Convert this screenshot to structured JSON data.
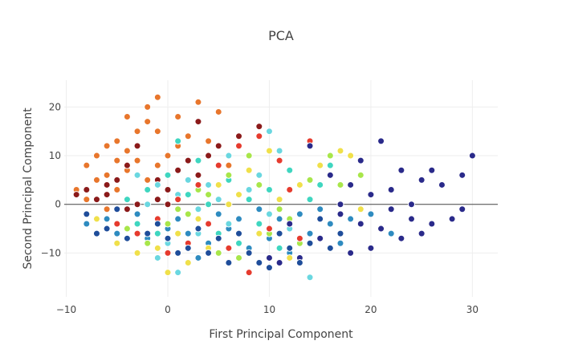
{
  "chart_data": {
    "type": "scatter",
    "title": "PCA",
    "xlabel": "First Principal Component",
    "ylabel": "Second Principal Component",
    "xlim": [
      -10.2,
      32.5
    ],
    "ylim": [
      -19,
      25.5
    ],
    "xticks": [
      -10,
      0,
      10,
      20,
      30
    ],
    "xtick_labels": [
      "−10",
      "0",
      "10",
      "20",
      "30"
    ],
    "yticks": [
      -10,
      0,
      10,
      20
    ],
    "ytick_labels": [
      "−10",
      "0",
      "10",
      "20"
    ],
    "grid": true,
    "legend": "none",
    "point_count": 1797,
    "palette": [
      "#e8762c",
      "#8b1a1a",
      "#2e8bc0",
      "#6ad7e0",
      "#3fd6c0",
      "#a8e64a",
      "#f0e04a",
      "#e63b2e",
      "#2a2a8a",
      "#1f4d9a"
    ],
    "series": [
      {
        "color": "#e8762c",
        "points": [
          [
            -5,
            13
          ],
          [
            -4,
            18
          ],
          [
            -1,
            22
          ],
          [
            -2,
            17
          ],
          [
            -6,
            12
          ],
          [
            -3,
            15
          ],
          [
            -7,
            10
          ],
          [
            -4,
            11
          ],
          [
            -8,
            8
          ],
          [
            -2,
            20
          ],
          [
            3,
            21
          ],
          [
            -1,
            15
          ],
          [
            1,
            12
          ],
          [
            -5,
            9
          ],
          [
            -6,
            6
          ],
          [
            -3,
            9
          ],
          [
            0,
            10
          ],
          [
            2,
            14
          ],
          [
            5,
            19
          ],
          [
            -4,
            7
          ],
          [
            -7,
            5
          ],
          [
            -9,
            3
          ],
          [
            -2,
            5
          ],
          [
            6,
            8
          ],
          [
            4,
            13
          ],
          [
            1,
            18
          ],
          [
            -1,
            8
          ],
          [
            -8,
            1
          ],
          [
            -5,
            3
          ],
          [
            -6,
            -1
          ]
        ]
      },
      {
        "color": "#8b1a1a",
        "points": [
          [
            -8,
            3
          ],
          [
            -6,
            4
          ],
          [
            -4,
            8
          ],
          [
            -3,
            12
          ],
          [
            -1,
            5
          ],
          [
            0,
            3
          ],
          [
            1,
            7
          ],
          [
            2,
            9
          ],
          [
            3,
            17
          ],
          [
            2,
            2
          ],
          [
            -2,
            3
          ],
          [
            -5,
            5
          ],
          [
            -7,
            1
          ],
          [
            -4,
            -1
          ],
          [
            -1,
            1
          ],
          [
            4,
            10
          ],
          [
            5,
            12
          ],
          [
            3,
            6
          ],
          [
            -6,
            2
          ],
          [
            0,
            0
          ],
          [
            7,
            14
          ],
          [
            9,
            16
          ],
          [
            -9,
            2
          ],
          [
            -3,
            0
          ]
        ]
      },
      {
        "color": "#2e8bc0",
        "points": [
          [
            -8,
            -4
          ],
          [
            -6,
            -3
          ],
          [
            -3,
            -2
          ],
          [
            0,
            -5
          ],
          [
            2,
            -6
          ],
          [
            4,
            -8
          ],
          [
            6,
            -5
          ],
          [
            8,
            -9
          ],
          [
            10,
            -7
          ],
          [
            12,
            -10
          ],
          [
            14,
            -6
          ],
          [
            16,
            -4
          ],
          [
            18,
            -3
          ],
          [
            11,
            -3
          ],
          [
            13,
            -2
          ],
          [
            15,
            -1
          ],
          [
            5,
            -2
          ],
          [
            7,
            -3
          ],
          [
            9,
            -1
          ],
          [
            20,
            -2
          ],
          [
            22,
            -6
          ],
          [
            3,
            -11
          ],
          [
            1,
            -3
          ],
          [
            -2,
            -7
          ],
          [
            -5,
            -6
          ],
          [
            17,
            -8
          ]
        ]
      },
      {
        "color": "#6ad7e0",
        "points": [
          [
            -3,
            6
          ],
          [
            -1,
            4
          ],
          [
            1,
            2
          ],
          [
            2,
            5
          ],
          [
            3,
            -1
          ],
          [
            5,
            1
          ],
          [
            6,
            -4
          ],
          [
            0,
            -8
          ],
          [
            -1,
            -11
          ],
          [
            1,
            -14
          ],
          [
            3,
            -6
          ],
          [
            8,
            3
          ],
          [
            10,
            -2
          ],
          [
            12,
            -5
          ],
          [
            14,
            -15
          ],
          [
            4,
            4
          ],
          [
            -2,
            0
          ],
          [
            6,
            10
          ],
          [
            10,
            15
          ],
          [
            9,
            6
          ],
          [
            11,
            11
          ]
        ]
      },
      {
        "color": "#3fd6c0",
        "points": [
          [
            -4,
            1
          ],
          [
            -2,
            3
          ],
          [
            0,
            6
          ],
          [
            2,
            2
          ],
          [
            4,
            0
          ],
          [
            6,
            5
          ],
          [
            8,
            1
          ],
          [
            10,
            3
          ],
          [
            12,
            7
          ],
          [
            14,
            1
          ],
          [
            5,
            -6
          ],
          [
            7,
            -8
          ],
          [
            3,
            9
          ],
          [
            1,
            13
          ],
          [
            -1,
            -6
          ],
          [
            -3,
            -4
          ],
          [
            9,
            -4
          ],
          [
            11,
            -9
          ],
          [
            15,
            4
          ],
          [
            16,
            8
          ]
        ]
      },
      {
        "color": "#a8e64a",
        "points": [
          [
            -2,
            -8
          ],
          [
            0,
            -4
          ],
          [
            2,
            -2
          ],
          [
            4,
            2
          ],
          [
            6,
            6
          ],
          [
            8,
            10
          ],
          [
            10,
            -6
          ],
          [
            12,
            -3
          ],
          [
            14,
            5
          ],
          [
            16,
            10
          ],
          [
            5,
            -10
          ],
          [
            7,
            -11
          ],
          [
            3,
            3
          ],
          [
            1,
            -1
          ],
          [
            9,
            4
          ],
          [
            11,
            -1
          ],
          [
            13,
            -8
          ],
          [
            -4,
            -5
          ],
          [
            17,
            4
          ],
          [
            19,
            6
          ]
        ]
      },
      {
        "color": "#f0e04a",
        "points": [
          [
            -5,
            -8
          ],
          [
            -3,
            -10
          ],
          [
            -1,
            -9
          ],
          [
            1,
            -6
          ],
          [
            3,
            -3
          ],
          [
            5,
            4
          ],
          [
            7,
            2
          ],
          [
            9,
            -6
          ],
          [
            11,
            1
          ],
          [
            13,
            4
          ],
          [
            15,
            8
          ],
          [
            17,
            11
          ],
          [
            19,
            -1
          ],
          [
            2,
            -12
          ],
          [
            0,
            -14
          ],
          [
            4,
            -9
          ],
          [
            6,
            0
          ],
          [
            8,
            7
          ],
          [
            10,
            11
          ],
          [
            12,
            -11
          ],
          [
            18,
            10
          ],
          [
            -7,
            -3
          ]
        ]
      },
      {
        "color": "#e63b2e",
        "points": [
          [
            -3,
            -6
          ],
          [
            -1,
            -3
          ],
          [
            1,
            1
          ],
          [
            3,
            4
          ],
          [
            5,
            8
          ],
          [
            7,
            12
          ],
          [
            9,
            14
          ],
          [
            11,
            9
          ],
          [
            6,
            -9
          ],
          [
            8,
            -14
          ],
          [
            2,
            -8
          ],
          [
            4,
            -4
          ],
          [
            0,
            -10
          ],
          [
            10,
            -5
          ],
          [
            12,
            3
          ],
          [
            14,
            13
          ],
          [
            -5,
            -4
          ],
          [
            13,
            -7
          ]
        ]
      },
      {
        "color": "#2a2a8a",
        "points": [
          [
            16,
            6
          ],
          [
            18,
            4
          ],
          [
            20,
            2
          ],
          [
            22,
            -1
          ],
          [
            24,
            -3
          ],
          [
            26,
            -4
          ],
          [
            28,
            -3
          ],
          [
            19,
            9
          ],
          [
            21,
            13
          ],
          [
            23,
            7
          ],
          [
            25,
            5
          ],
          [
            27,
            4
          ],
          [
            29,
            6
          ],
          [
            30,
            10
          ],
          [
            17,
            -2
          ],
          [
            19,
            -4
          ],
          [
            21,
            -5
          ],
          [
            23,
            -7
          ],
          [
            25,
            -6
          ],
          [
            15,
            -7
          ],
          [
            13,
            -11
          ],
          [
            11,
            -12
          ],
          [
            14,
            12
          ],
          [
            17,
            0
          ],
          [
            20,
            -9
          ],
          [
            18,
            -10
          ],
          [
            29,
            -1
          ],
          [
            24,
            0
          ],
          [
            26,
            7
          ],
          [
            22,
            3
          ],
          [
            12,
            -4
          ],
          [
            10,
            -11
          ]
        ]
      },
      {
        "color": "#1f4d9a",
        "points": [
          [
            -8,
            -2
          ],
          [
            -6,
            -5
          ],
          [
            -4,
            -7
          ],
          [
            -2,
            -6
          ],
          [
            0,
            -7
          ],
          [
            2,
            -9
          ],
          [
            4,
            -10
          ],
          [
            6,
            -12
          ],
          [
            8,
            -10
          ],
          [
            10,
            -13
          ],
          [
            12,
            -9
          ],
          [
            14,
            -8
          ],
          [
            16,
            -9
          ],
          [
            -1,
            -4
          ],
          [
            1,
            -10
          ],
          [
            3,
            -5
          ],
          [
            5,
            -7
          ],
          [
            7,
            -6
          ],
          [
            9,
            -12
          ],
          [
            11,
            -6
          ],
          [
            13,
            -12
          ],
          [
            15,
            -3
          ],
          [
            17,
            -6
          ],
          [
            -7,
            -6
          ],
          [
            -5,
            -1
          ]
        ]
      }
    ]
  }
}
